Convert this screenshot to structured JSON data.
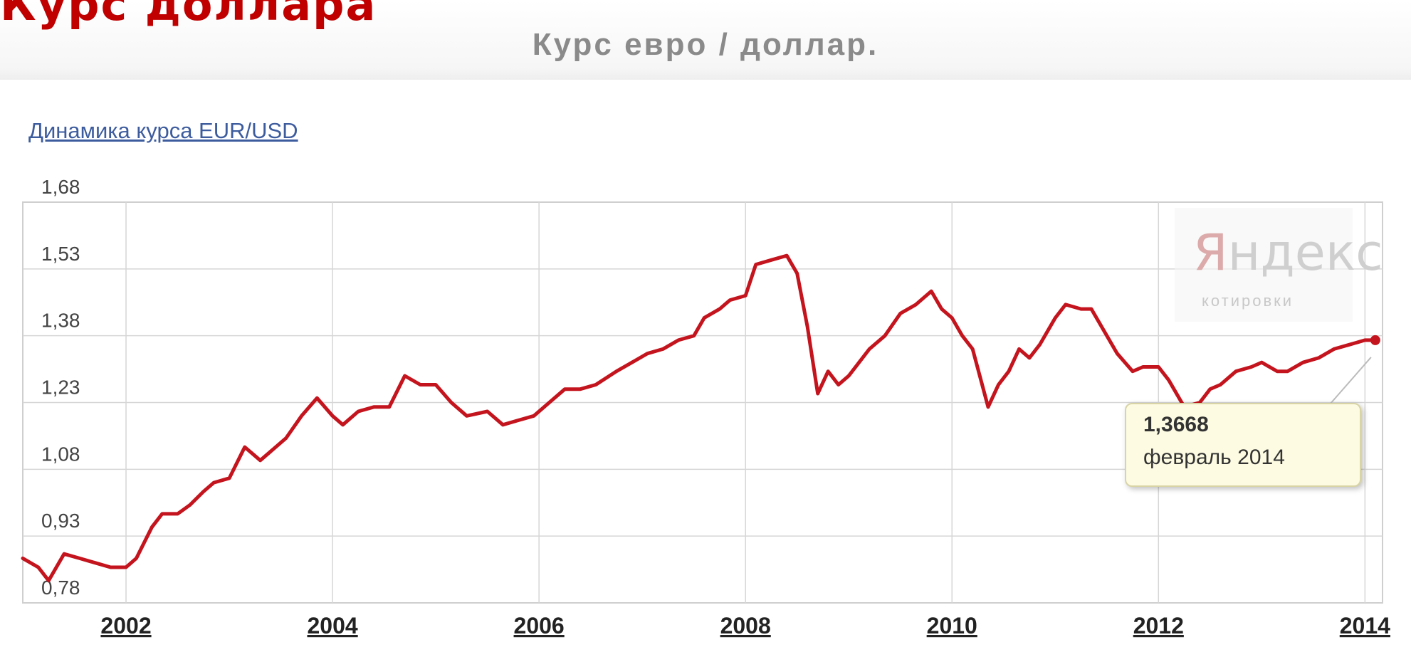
{
  "header": {
    "cut_title": "Курс доллара",
    "title": "Курс евро / доллар."
  },
  "chart_link": "Динамика курса EUR/USD",
  "watermark": {
    "logo_first": "Я",
    "logo_rest": "ндекс",
    "sub": "котировки"
  },
  "tooltip": {
    "value": "1,3668",
    "date": "февраль 2014"
  },
  "colors": {
    "line": "#c4141d",
    "title_red": "#c00000",
    "grid": "#d6d6d6"
  },
  "chart_data": {
    "type": "line",
    "title": "",
    "xlabel": "",
    "ylabel": "",
    "ylim": [
      0.78,
      1.68
    ],
    "xlim": [
      2001.0,
      2014.17
    ],
    "grid": true,
    "y_ticks": [
      1.68,
      1.53,
      1.38,
      1.23,
      1.08,
      0.93,
      0.78
    ],
    "y_tick_labels": [
      "1,68",
      "1,53",
      "1,38",
      "1,23",
      "1,08",
      "0,93",
      "0,78"
    ],
    "x_ticks": [
      2002,
      2004,
      2006,
      2008,
      2010,
      2012,
      2014
    ],
    "x_tick_labels": [
      "2002",
      "2004",
      "2006",
      "2008",
      "2010",
      "2012",
      "2014"
    ],
    "series": [
      {
        "x": [
          2001.0,
          2001.15,
          2001.25,
          2001.4,
          2001.55,
          2001.7,
          2001.85,
          2002.0,
          2002.1,
          2002.25,
          2002.35,
          2002.5,
          2002.62,
          2002.75,
          2002.85,
          2003.0,
          2003.15,
          2003.3,
          2003.4,
          2003.55,
          2003.7,
          2003.85,
          2004.0,
          2004.1,
          2004.25,
          2004.4,
          2004.55,
          2004.7,
          2004.85,
          2005.0,
          2005.15,
          2005.3,
          2005.5,
          2005.65,
          2005.8,
          2005.95,
          2006.1,
          2006.25,
          2006.4,
          2006.55,
          2006.75,
          2006.9,
          2007.05,
          2007.2,
          2007.35,
          2007.5,
          2007.6,
          2007.75,
          2007.85,
          2008.0,
          2008.1,
          2008.25,
          2008.4,
          2008.5,
          2008.6,
          2008.7,
          2008.8,
          2008.9,
          2009.0,
          2009.1,
          2009.2,
          2009.35,
          2009.5,
          2009.65,
          2009.8,
          2009.9,
          2010.0,
          2010.1,
          2010.2,
          2010.35,
          2010.45,
          2010.55,
          2010.65,
          2010.75,
          2010.85,
          2011.0,
          2011.1,
          2011.25,
          2011.35,
          2011.5,
          2011.6,
          2011.75,
          2011.85,
          2012.0,
          2012.1,
          2012.25,
          2012.4,
          2012.5,
          2012.6,
          2012.75,
          2012.9,
          2013.0,
          2013.15,
          2013.25,
          2013.4,
          2013.55,
          2013.7,
          2013.85,
          2014.0,
          2014.1
        ],
        "y": [
          0.88,
          0.86,
          0.83,
          0.89,
          0.88,
          0.87,
          0.86,
          0.86,
          0.88,
          0.95,
          0.98,
          0.98,
          1.0,
          1.03,
          1.05,
          1.06,
          1.13,
          1.1,
          1.12,
          1.15,
          1.2,
          1.24,
          1.2,
          1.18,
          1.21,
          1.22,
          1.22,
          1.29,
          1.27,
          1.27,
          1.23,
          1.2,
          1.21,
          1.18,
          1.19,
          1.2,
          1.23,
          1.26,
          1.26,
          1.27,
          1.3,
          1.32,
          1.34,
          1.35,
          1.37,
          1.38,
          1.42,
          1.44,
          1.46,
          1.47,
          1.54,
          1.55,
          1.56,
          1.52,
          1.4,
          1.25,
          1.3,
          1.27,
          1.29,
          1.32,
          1.35,
          1.38,
          1.43,
          1.45,
          1.48,
          1.44,
          1.42,
          1.38,
          1.35,
          1.22,
          1.27,
          1.3,
          1.35,
          1.33,
          1.36,
          1.42,
          1.45,
          1.44,
          1.44,
          1.38,
          1.34,
          1.3,
          1.31,
          1.31,
          1.28,
          1.22,
          1.23,
          1.26,
          1.27,
          1.3,
          1.31,
          1.32,
          1.3,
          1.3,
          1.32,
          1.33,
          1.35,
          1.36,
          1.37,
          1.37
        ]
      }
    ]
  }
}
